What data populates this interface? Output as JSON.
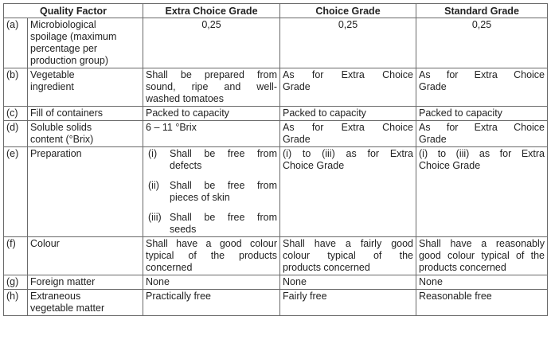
{
  "headers": {
    "factor": "Quality Factor",
    "extra": "Extra Choice Grade",
    "choice": "Choice Grade",
    "standard": "Standard Grade"
  },
  "rows": [
    {
      "label": "(a)",
      "factor_lines": [
        "Microbiological",
        "spoilage (maximum",
        "percentage per",
        "production group)"
      ],
      "extra": "0,25",
      "choice": "0,25",
      "standard": "0,25"
    },
    {
      "label": "(b)",
      "factor_lines": [
        "Vegetable",
        "ingredient"
      ],
      "extra_lines": [
        "Shall be prepared from",
        "sound, ripe and well-",
        "washed tomatoes"
      ],
      "choice_lines": [
        "As for Extra Choice",
        "Grade"
      ],
      "standard_lines": [
        "As for Extra Choice",
        "Grade"
      ]
    },
    {
      "label": "(c)",
      "factor_lines": [
        "Fill of containers"
      ],
      "extra": "Packed to capacity",
      "choice": "Packed to capacity",
      "standard": "Packed to capacity"
    },
    {
      "label": "(d)",
      "factor_lines": [
        "Soluble solids",
        "content (°Brix)"
      ],
      "extra": "6 – 11 °Brix",
      "choice_lines": [
        "As for Extra Choice",
        "Grade"
      ],
      "standard_lines": [
        "As for Extra Choice",
        "Grade"
      ]
    },
    {
      "label": "(e)",
      "factor_lines": [
        "Preparation"
      ],
      "extra_items": [
        {
          "num": "(i)",
          "lines": [
            "Shall be free from",
            "defects"
          ]
        },
        {
          "num": "(ii)",
          "lines": [
            "Shall be free from",
            "pieces of skin"
          ]
        },
        {
          "num": "(iii)",
          "lines": [
            "Shall be free from",
            "seeds"
          ]
        }
      ],
      "choice_lines": [
        "(i) to (iii) as for Extra",
        "Choice Grade"
      ],
      "standard_lines": [
        "(i) to (iii) as for Extra",
        "Choice Grade"
      ]
    },
    {
      "label": "(f)",
      "factor_lines": [
        "Colour"
      ],
      "extra_lines": [
        "Shall have a good colour",
        "typical of the products",
        "concerned"
      ],
      "choice_lines": [
        "Shall have a fairly good",
        "colour typical of the",
        "products concerned"
      ],
      "standard_lines": [
        "Shall have a reasonably",
        "good colour typical of the",
        "products concerned"
      ]
    },
    {
      "label": "(g)",
      "factor_lines": [
        "Foreign matter"
      ],
      "extra": "None",
      "choice": "None",
      "standard": "None"
    },
    {
      "label": "(h)",
      "factor_lines": [
        "Extraneous",
        "vegetable matter"
      ],
      "extra": "Practically free",
      "choice": "Fairly free",
      "standard": "Reasonable free"
    }
  ]
}
